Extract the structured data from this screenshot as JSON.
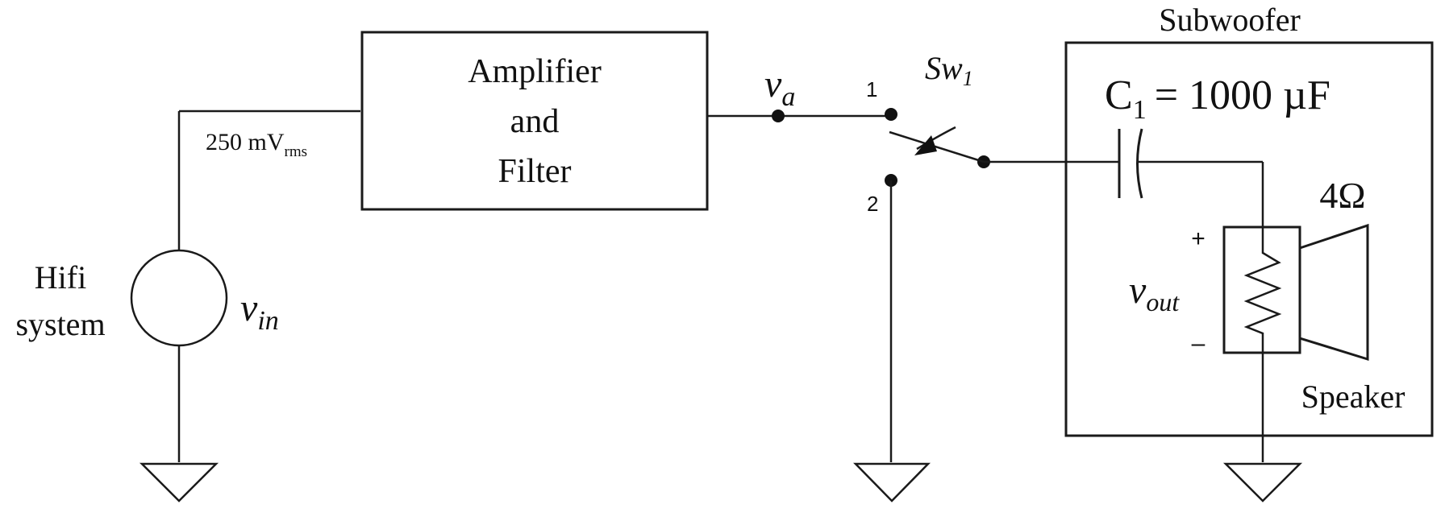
{
  "blocks": {
    "amplifier": {
      "line1": "Amplifier",
      "line2": "and",
      "line3": "Filter"
    },
    "subwoofer": {
      "label": "Subwoofer"
    },
    "speaker": {
      "label": "Speaker"
    }
  },
  "source": {
    "name_line1": "Hifi",
    "name_line2": "system",
    "voltage_symbol": "v",
    "voltage_subscript": "in",
    "amplitude": "250 mV",
    "amplitude_subscript": "rms"
  },
  "amp_output": {
    "symbol": "v",
    "subscript": "a"
  },
  "switch": {
    "symbol": "Sw",
    "subscript": "1",
    "position1": "1",
    "position2": "2"
  },
  "capacitor": {
    "symbol": "C",
    "subscript": "1",
    "value": "= 1000 µF"
  },
  "load": {
    "resistance": "4Ω",
    "output_symbol": "v",
    "output_subscript": "out",
    "plus": "+",
    "minus": "–"
  }
}
